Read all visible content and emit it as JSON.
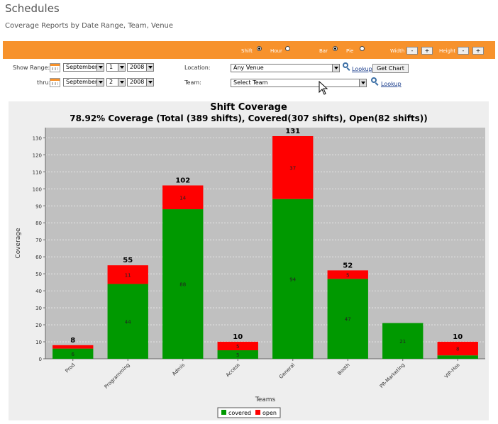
{
  "page": {
    "title": "Schedules",
    "subtitle": "Coverage Reports by Date Range, Team, Venue"
  },
  "toolbar": {
    "shift_label": "Shift",
    "hour_label": "Hour",
    "bar_label": "Bar",
    "pie_label": "Pie",
    "width_label": "Width",
    "height_label": "Height",
    "minus": "-",
    "plus": "+",
    "selected_unit": "Shift",
    "selected_type": "Bar",
    "color": "#f7922c"
  },
  "form": {
    "show_range_label": "Show Range:",
    "thru_label": "thru:",
    "start": {
      "month": "September",
      "day": "1",
      "year": "2008"
    },
    "end": {
      "month": "September",
      "day": "2",
      "year": "2008"
    },
    "location_label": "Location:",
    "location_value": "Any Venue",
    "team_label": "Team:",
    "team_value": "Select Team",
    "lookup_label": "Lookup",
    "get_chart_label": "Get Chart"
  },
  "icons": {
    "calendar": "calendar-icon",
    "lookup": "magnifier-icon",
    "cursor": "mouse-pointer-icon"
  },
  "chart_data": {
    "type": "bar",
    "stacked": true,
    "title": "Shift Coverage",
    "subtitle": "78.92% Coverage (Total (389 shifts), Covered(307 shifts), Open(82 shifts))",
    "xlabel": "Teams",
    "ylabel": "Coverage",
    "ylim": [
      0,
      136
    ],
    "yticks": [
      0,
      10,
      20,
      30,
      40,
      50,
      60,
      70,
      80,
      90,
      100,
      110,
      120,
      130
    ],
    "grid": true,
    "legend_position": "bottom-center",
    "categories": [
      "Prod",
      "Programming",
      "Admis",
      "Access",
      "General",
      "Booth",
      "PR-Marketing",
      "VIP-Hos"
    ],
    "totals": [
      "8",
      "55",
      "102",
      "10",
      "131",
      "52",
      "",
      "10"
    ],
    "series": [
      {
        "name": "covered",
        "color": "#009900",
        "values": [
          6,
          44,
          88,
          5,
          94,
          47,
          21,
          2
        ],
        "labels": [
          "6",
          "44",
          "88",
          "5",
          "94",
          "47",
          "21",
          ""
        ]
      },
      {
        "name": "open",
        "color": "#ff0000",
        "values": [
          2,
          11,
          14,
          5,
          37,
          5,
          0,
          8
        ],
        "labels": [
          "",
          "11",
          "14",
          "5",
          "37",
          "5",
          "",
          "8"
        ]
      }
    ]
  }
}
